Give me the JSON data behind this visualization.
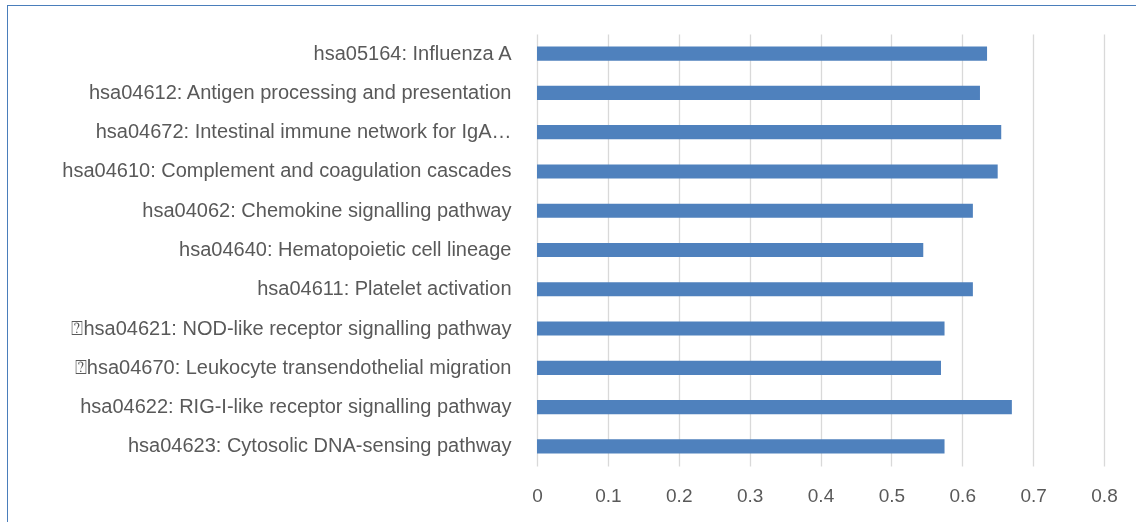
{
  "chart_data": {
    "type": "bar",
    "orientation": "horizontal",
    "categories": [
      "hsa05164: Influenza A",
      "hsa04612: Antigen processing and presentation",
      "hsa04672: Intestinal immune network for IgA…",
      "hsa04610: Complement and coagulation cascades",
      "hsa04062: Chemokine signalling pathway",
      "hsa04640: Hematopoietic cell lineage",
      "hsa04611: Platelet activation",
      "⍰hsa04621: NOD-like receptor signalling pathway",
      "⍰hsa04670: Leukocyte transendothelial migration",
      "hsa04622: RIG-I-like receptor signalling pathway",
      "hsa04623: Cytosolic DNA-sensing pathway"
    ],
    "values": [
      0.635,
      0.625,
      0.655,
      0.65,
      0.615,
      0.545,
      0.615,
      0.575,
      0.57,
      0.67,
      0.575
    ],
    "color": "#4f81bd",
    "xlim": [
      0,
      0.8
    ],
    "xticks": [
      0,
      0.1,
      0.2,
      0.3,
      0.4,
      0.5,
      0.6,
      0.7,
      0.8
    ],
    "grid": "x"
  }
}
